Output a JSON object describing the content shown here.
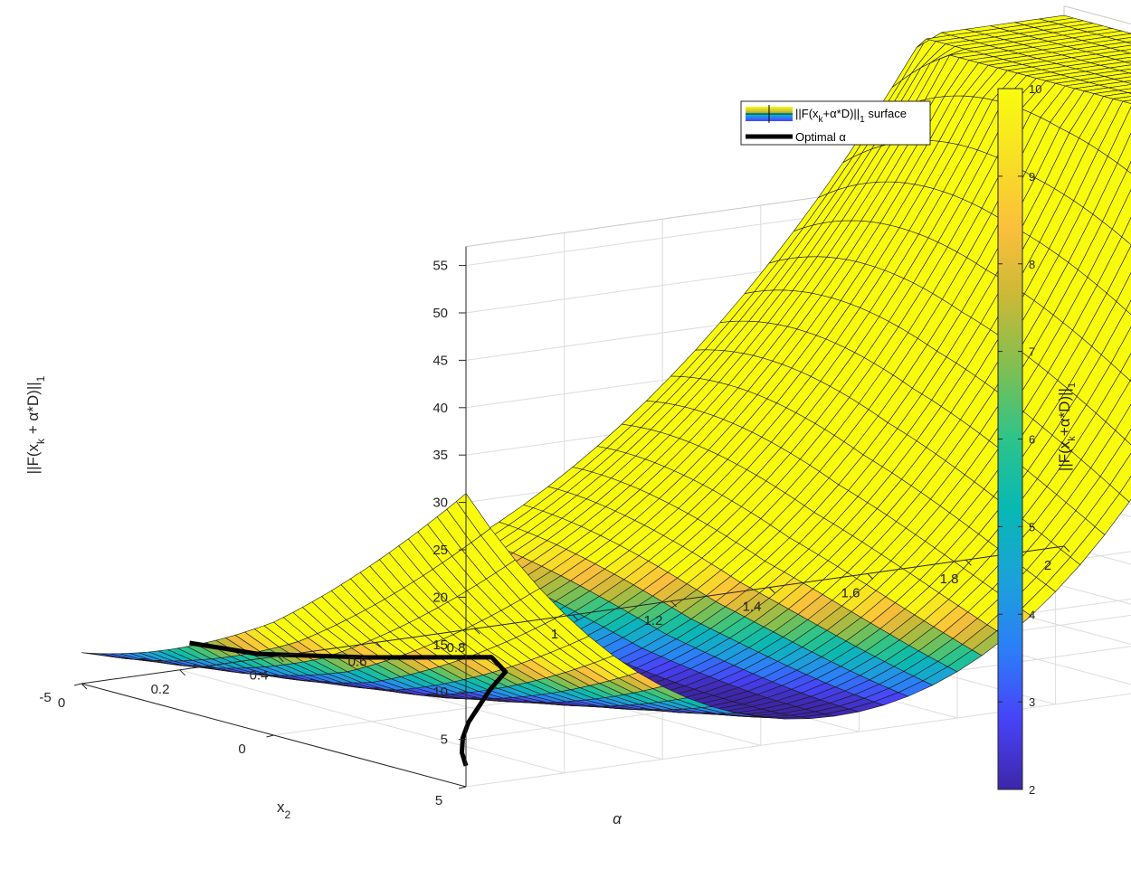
{
  "chart_data": {
    "type": "surface",
    "title": "",
    "xlabel": "α",
    "ylabel": "x",
    "ylabel_subscript": "2",
    "zlabel_parts": [
      "||F(x",
      "k",
      " + α*D)||",
      "1"
    ],
    "xlim": [
      0,
      2
    ],
    "ylim": [
      -5,
      5
    ],
    "zlim": [
      0,
      57
    ],
    "x_ticks": [
      "0",
      "0.2",
      "0.4",
      "0.6",
      "0.8",
      "1",
      "1.2",
      "1.4",
      "1.6",
      "1.8",
      "2"
    ],
    "x_tick_values": [
      0,
      0.2,
      0.4,
      0.6,
      0.8,
      1,
      1.2,
      1.4,
      1.6,
      1.8,
      2
    ],
    "y_ticks": [
      "5",
      "0",
      "-5"
    ],
    "y_tick_values": [
      5,
      0,
      -5
    ],
    "z_ticks": [
      "5",
      "10",
      "15",
      "20",
      "25",
      "30",
      "35",
      "40",
      "45",
      "50",
      "55"
    ],
    "z_tick_values": [
      5,
      10,
      15,
      20,
      25,
      30,
      35,
      40,
      45,
      50,
      55
    ],
    "color_limits": [
      2,
      10
    ],
    "colorbar": {
      "ticks": [
        "2",
        "3",
        "4",
        "5",
        "6",
        "7",
        "8",
        "9",
        "10"
      ],
      "tick_values": [
        2,
        3,
        4,
        5,
        6,
        7,
        8,
        9,
        10
      ],
      "label_parts": [
        "||F(x",
        "k",
        "+α*D)||",
        "1"
      ],
      "colormap": [
        "#3e26a8",
        "#4743f8",
        "#2c7ef8",
        "#1ba2d8",
        "#08b8b4",
        "#2cc48a",
        "#7ebf52",
        "#c8b937",
        "#fbbf3c",
        "#f8e024",
        "#f9fb0e"
      ]
    },
    "legend": {
      "placement": "top-right",
      "entries": [
        {
          "label_parts": [
            "||F(x",
            "k",
            "+α*D)||",
            "1",
            " surface"
          ],
          "kind": "surface"
        },
        {
          "label_parts": [
            "Optimal α"
          ],
          "kind": "line"
        }
      ]
    },
    "surface_function": "||F(x_k + alpha*D)||_1 with peaks at (alpha=0, x2=-5) ~ 57 and (alpha=2, x2=5) ~ 50, minimum ~ 1 near alpha ~ 0.3-0.5",
    "optimal_alpha_curve": {
      "x2": [
        5,
        4,
        3,
        2,
        1,
        0,
        -1,
        -2,
        -3,
        -4,
        -5
      ],
      "alpha": [
        0.0,
        0.07,
        0.15,
        0.24,
        0.34,
        0.44,
        0.55,
        0.6,
        0.42,
        0.28,
        0.22
      ],
      "z": [
        2.2,
        2.0,
        1.9,
        1.8,
        1.7,
        1.6,
        1.6,
        1.7,
        1.9,
        2.2,
        2.7
      ]
    }
  }
}
